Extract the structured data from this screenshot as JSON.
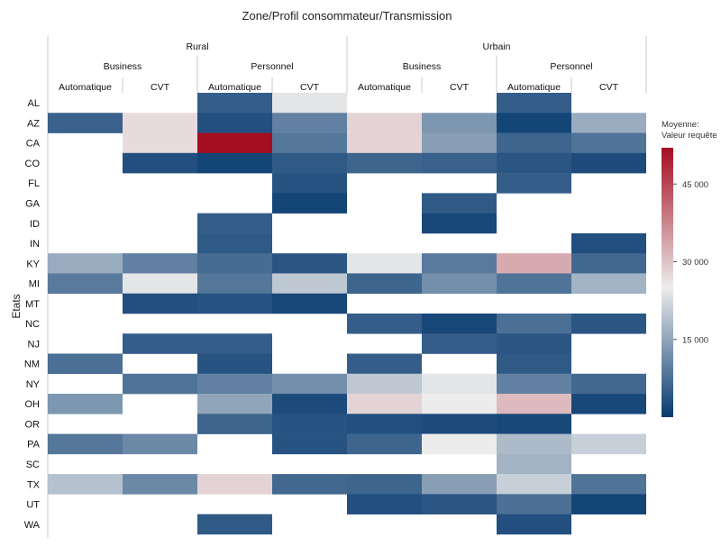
{
  "chart_data": {
    "type": "heatmap",
    "title": "Zone/Profil consommateur/Transmission",
    "ylabel": "Etats",
    "legend_title": [
      "Moyenne:",
      "Valeur requête"
    ],
    "color_scale": {
      "min": 0,
      "mid": 25000,
      "max": 52000,
      "low_color": "#063a70",
      "mid_color": "#ececec",
      "high_color": "#a50d20"
    },
    "legend_ticks": [
      {
        "value": 15000,
        "label": "15 000"
      },
      {
        "value": 30000,
        "label": "30 000"
      },
      {
        "value": 45000,
        "label": "45 000"
      }
    ],
    "zones": [
      "Rural",
      "Urbain"
    ],
    "profiles": [
      "Business",
      "Personnel",
      "Business",
      "Personnel"
    ],
    "transmissions": [
      "Automatique",
      "CVT",
      "Automatique",
      "CVT",
      "Automatique",
      "CVT",
      "Automatique",
      "CVT"
    ],
    "rows": [
      "AL",
      "AZ",
      "CA",
      "CO",
      "FL",
      "GA",
      "ID",
      "IN",
      "KY",
      "MI",
      "MT",
      "NC",
      "NJ",
      "NM",
      "NY",
      "OH",
      "OR",
      "PA",
      "SC",
      "TX",
      "UT",
      "WA"
    ],
    "values": [
      [
        null,
        null,
        5000,
        24000,
        null,
        null,
        5000,
        null
      ],
      [
        5500,
        27000,
        3000,
        10000,
        28000,
        13000,
        1500,
        16000
      ],
      [
        null,
        27000,
        52000,
        8500,
        28000,
        14000,
        6000,
        8000
      ],
      [
        null,
        3000,
        1500,
        4500,
        6000,
        5500,
        4000,
        2500
      ],
      [
        null,
        null,
        null,
        3500,
        null,
        null,
        5000,
        null
      ],
      [
        null,
        null,
        null,
        1500,
        null,
        4500,
        null,
        null
      ],
      [
        null,
        null,
        5000,
        null,
        null,
        2000,
        null,
        null
      ],
      [
        null,
        null,
        4500,
        null,
        null,
        null,
        null,
        3000
      ],
      [
        16000,
        10000,
        7000,
        4000,
        24000,
        9000,
        33000,
        6500
      ],
      [
        9000,
        24000,
        8500,
        20000,
        6000,
        12000,
        8000,
        17000
      ],
      [
        null,
        3000,
        3500,
        2000,
        null,
        null,
        null,
        null
      ],
      [
        null,
        null,
        null,
        null,
        5000,
        2000,
        7500,
        4000
      ],
      [
        null,
        5000,
        5000,
        null,
        null,
        5000,
        4000,
        null
      ],
      [
        7500,
        null,
        3500,
        null,
        5000,
        null,
        4500,
        null
      ],
      [
        null,
        8000,
        10000,
        12000,
        20000,
        24000,
        10000,
        6500
      ],
      [
        13000,
        null,
        15000,
        2500,
        28000,
        25000,
        31000,
        2000
      ],
      [
        null,
        null,
        6000,
        3500,
        3000,
        2500,
        2000,
        null
      ],
      [
        8500,
        11000,
        null,
        3500,
        6000,
        25000,
        18000,
        21000
      ],
      [
        null,
        null,
        null,
        null,
        null,
        null,
        17000,
        null
      ],
      [
        19000,
        11000,
        28000,
        6500,
        6000,
        14000,
        21000,
        8000
      ],
      [
        null,
        null,
        null,
        null,
        3000,
        4000,
        7500,
        1500
      ],
      [
        null,
        null,
        4500,
        null,
        null,
        null,
        3000,
        null
      ]
    ]
  }
}
